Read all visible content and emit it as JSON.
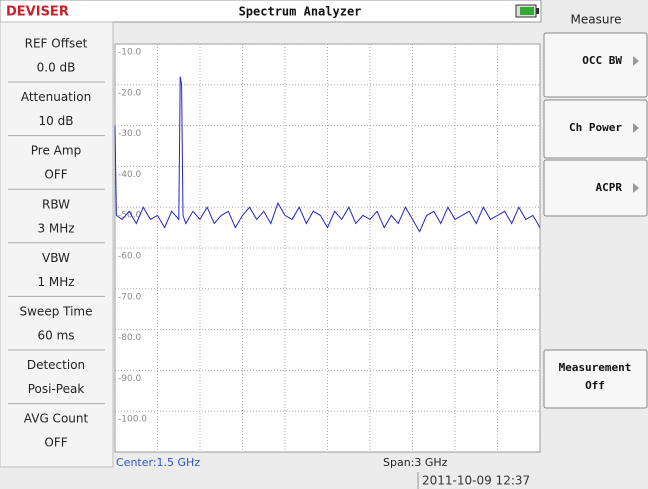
{
  "header": {
    "logo": "DEVISER",
    "title": "Spectrum Analyzer",
    "menu_title": "Measure"
  },
  "parameters": [
    {
      "label": "REF Offset",
      "value": "0.0 dB"
    },
    {
      "label": "Attenuation",
      "value": "10 dB"
    },
    {
      "label": "Pre Amp",
      "value": "OFF"
    },
    {
      "label": "RBW",
      "value": "3 MHz"
    },
    {
      "label": "VBW",
      "value": "1 MHz"
    },
    {
      "label": "Sweep Time",
      "value": "60 ms"
    },
    {
      "label": "Detection",
      "value": "Posi-Peak"
    },
    {
      "label": "AVG Count",
      "value": "OFF"
    }
  ],
  "softkeys": [
    {
      "label": "OCC BW"
    },
    {
      "label": "Ch Power"
    },
    {
      "label": "ACPR"
    },
    {
      "label": "Measurement",
      "state": "Off"
    }
  ],
  "chart_data": {
    "type": "line",
    "xlim": [
      0,
      3
    ],
    "ylim": [
      -110,
      -10
    ],
    "xticks": [
      0,
      0.3,
      0.6,
      0.9,
      1.2,
      1.5,
      1.8,
      2.1,
      2.4,
      2.7,
      3
    ],
    "yticks": [
      {
        "value": -10,
        "label": "-10.0"
      },
      {
        "value": -20,
        "label": "-20.0"
      },
      {
        "value": -30,
        "label": "-30.0"
      },
      {
        "value": -40,
        "label": "-40.0"
      },
      {
        "value": -50,
        "label": "-50.0"
      },
      {
        "value": -60,
        "label": "-60.0"
      },
      {
        "value": -70,
        "label": "-70.0"
      },
      {
        "value": -80,
        "label": "-80.0"
      },
      {
        "value": -90,
        "label": "-90.0"
      },
      {
        "value": -100,
        "label": "-100.0"
      }
    ],
    "grid": true,
    "series": [
      {
        "color": "#2424c8",
        "x": [
          0,
          0.01,
          0.05,
          0.1,
          0.15,
          0.2,
          0.25,
          0.3,
          0.35,
          0.4,
          0.45,
          0.46,
          0.47,
          0.48,
          0.5,
          0.55,
          0.6,
          0.65,
          0.7,
          0.75,
          0.8,
          0.85,
          0.9,
          0.95,
          1.0,
          1.05,
          1.1,
          1.15,
          1.2,
          1.25,
          1.3,
          1.35,
          1.4,
          1.45,
          1.5,
          1.55,
          1.6,
          1.65,
          1.7,
          1.75,
          1.8,
          1.85,
          1.9,
          1.95,
          2.0,
          2.05,
          2.1,
          2.15,
          2.2,
          2.25,
          2.3,
          2.35,
          2.4,
          2.45,
          2.5,
          2.55,
          2.6,
          2.65,
          2.7,
          2.75,
          2.8,
          2.85,
          2.9,
          2.95,
          3.0
        ],
        "values": [
          -30,
          -52,
          -53,
          -51,
          -54,
          -50,
          -53,
          -52,
          -55,
          -51,
          -53,
          -18,
          -20,
          -52,
          -54,
          -51,
          -53,
          -50,
          -54,
          -52,
          -51,
          -55,
          -52,
          -50,
          -53,
          -51,
          -54,
          -49,
          -52,
          -53,
          -50,
          -54,
          -51,
          -52,
          -55,
          -51,
          -53,
          -50,
          -54,
          -52,
          -53,
          -51,
          -55,
          -52,
          -54,
          -50,
          -53,
          -56,
          -52,
          -51,
          -54,
          -50,
          -53,
          -52,
          -51,
          -54,
          -50,
          -53,
          -52,
          -51,
          -54,
          -50,
          -53,
          -52,
          -55
        ]
      }
    ]
  },
  "footer": {
    "center": "Center:1.5 GHz",
    "span": "Span:3 GHz",
    "datetime": "2011-10-09 12:37"
  }
}
